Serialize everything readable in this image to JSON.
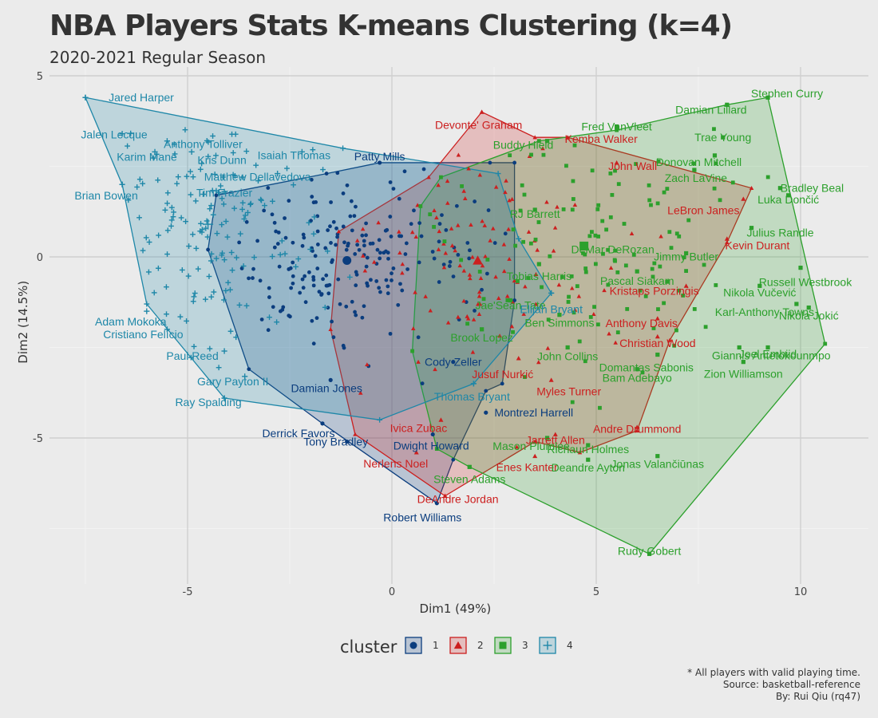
{
  "chart_data": {
    "type": "scatter",
    "title": "NBA Players Stats K-means Clustering (k=4)",
    "subtitle": "2020-2021 Regular Season",
    "xlabel": "Dim1 (49%)",
    "ylabel": "Dim2 (14.5%)",
    "xlim": [
      -8.5,
      11.5
    ],
    "ylim": [
      -9,
      5.2
    ],
    "x_ticks": [
      -5,
      0,
      5,
      10
    ],
    "y_ticks": [
      -5,
      0,
      5
    ],
    "grid": true,
    "legend": {
      "title": "cluster",
      "position": "bottom",
      "items": [
        "1",
        "2",
        "3",
        "4"
      ]
    },
    "caption": [
      "* All players with valid playing time.",
      "Source: basketball-reference",
      "By: Rui Qiu (rq47)"
    ],
    "clusters": [
      {
        "name": "1",
        "color": "#0b3d7e",
        "marker": "circle",
        "centroid": [
          -1.1,
          -0.1
        ],
        "hull": [
          [
            -4.3,
            1.7
          ],
          [
            -1.6,
            2.3
          ],
          [
            -0.3,
            2.6
          ],
          [
            2.4,
            2.6
          ],
          [
            3.0,
            2.6
          ],
          [
            3.0,
            -1.2
          ],
          [
            2.7,
            -3.5
          ],
          [
            2.3,
            -3.7
          ],
          [
            1.5,
            -5.6
          ],
          [
            1.1,
            -6.8
          ],
          [
            -1.7,
            -4.6
          ],
          [
            -3.5,
            -3.1
          ],
          [
            -4.5,
            0.2
          ]
        ],
        "labels": [
          {
            "name": "Patty Mills",
            "x": -0.3,
            "y": 2.6
          },
          {
            "name": "Cody Zeller",
            "x": 1.5,
            "y": -2.9
          },
          {
            "name": "Damian Jones",
            "x": -1.5,
            "y": -3.4
          },
          {
            "name": "Montrezl Harrell",
            "x": 2.3,
            "y": -4.3
          },
          {
            "name": "Derrick Favors",
            "x": -1.7,
            "y": -4.6
          },
          {
            "name": "Tony Bradley",
            "x": -1.1,
            "y": -5.1
          },
          {
            "name": "Dwight Howard",
            "x": 1.0,
            "y": -4.9
          },
          {
            "name": "Robert Williams",
            "x": 1.1,
            "y": -6.8
          }
        ]
      },
      {
        "name": "2",
        "color": "#cc1f1f",
        "marker": "triangle",
        "centroid": [
          2.1,
          -0.1
        ],
        "hull": [
          [
            0.9,
            2.2
          ],
          [
            2.2,
            4.0
          ],
          [
            3.5,
            3.3
          ],
          [
            4.3,
            3.3
          ],
          [
            8.8,
            1.9
          ],
          [
            8.2,
            0.4
          ],
          [
            6.8,
            -2.3
          ],
          [
            6.0,
            -4.8
          ],
          [
            4.6,
            -5.4
          ],
          [
            3.5,
            -5.1
          ],
          [
            1.3,
            -6.6
          ],
          [
            -0.9,
            -4.9
          ],
          [
            -1.5,
            -2.0
          ],
          [
            -1.3,
            0.7
          ]
        ],
        "labels": [
          {
            "name": "Devonte' Graham",
            "x": 2.2,
            "y": 4.0
          },
          {
            "name": "Kemba Walker",
            "x": 4.3,
            "y": 3.3
          },
          {
            "name": "John Wall",
            "x": 5.5,
            "y": 2.6
          },
          {
            "name": "LeBron James",
            "x": 8.6,
            "y": 1.6
          },
          {
            "name": "Kevin Durant",
            "x": 8.2,
            "y": 0.5
          },
          {
            "name": "Kristaps Porziņģis",
            "x": 7.2,
            "y": -0.8
          },
          {
            "name": "Anthony Davis",
            "x": 6.5,
            "y": -1.7
          },
          {
            "name": "Christian Wood",
            "x": 6.5,
            "y": -2.2
          },
          {
            "name": "Jusuf Nurkić",
            "x": 3.1,
            "y": -2.8
          },
          {
            "name": "Myles Turner",
            "x": 3.9,
            "y": -3.4
          },
          {
            "name": "Andre Drummond",
            "x": 6.0,
            "y": -4.7
          },
          {
            "name": "Ivica Zubac",
            "x": 1.2,
            "y": -4.5
          },
          {
            "name": "Jarrett Allen",
            "x": 4.0,
            "y": -4.9
          },
          {
            "name": "Nerlens Noel",
            "x": 0.6,
            "y": -5.4
          },
          {
            "name": "Enes Kanter",
            "x": 3.5,
            "y": -5.5
          },
          {
            "name": "DeAndre Jordan",
            "x": 1.3,
            "y": -6.6
          }
        ]
      },
      {
        "name": "3",
        "color": "#2ca02c",
        "marker": "square",
        "centroid": [
          4.7,
          0.3
        ],
        "hull": [
          [
            1.2,
            2.2
          ],
          [
            3.6,
            3.2
          ],
          [
            5.5,
            3.5
          ],
          [
            8.2,
            4.2
          ],
          [
            9.2,
            4.4
          ],
          [
            10.6,
            -2.4
          ],
          [
            6.3,
            -8.2
          ],
          [
            1.9,
            -5.8
          ],
          [
            1.1,
            -5.3
          ],
          [
            0.5,
            -2.6
          ],
          [
            0.7,
            1.4
          ]
        ],
        "labels": [
          {
            "name": "Stephen Curry",
            "x": 9.2,
            "y": 4.4
          },
          {
            "name": "Damian Lillard",
            "x": 8.2,
            "y": 4.2
          },
          {
            "name": "Fred VanVleet",
            "x": 5.5,
            "y": 3.6
          },
          {
            "name": "Trae Young",
            "x": 8.1,
            "y": 3.3
          },
          {
            "name": "Buddy Hield",
            "x": 3.8,
            "y": 3.2
          },
          {
            "name": "Donovan Mitchell",
            "x": 7.9,
            "y": 2.8
          },
          {
            "name": "Zach LaVine",
            "x": 7.4,
            "y": 2.4
          },
          {
            "name": "Bradley Beal",
            "x": 9.5,
            "y": 1.9
          },
          {
            "name": "Luka Dončić",
            "x": 9.7,
            "y": 1.7
          },
          {
            "name": "Julius Randle",
            "x": 8.8,
            "y": 0.8
          },
          {
            "name": "RJ Barrett",
            "x": 3.5,
            "y": 1.3
          },
          {
            "name": "DeMar DeRozan",
            "x": 4.7,
            "y": 0.3
          },
          {
            "name": "Jimmy Butler",
            "x": 7.2,
            "y": 0.1
          },
          {
            "name": "Tobias Harris",
            "x": 3.6,
            "y": -0.2
          },
          {
            "name": "Pascal Siakam",
            "x": 6.0,
            "y": -0.4
          },
          {
            "name": "Russell Westbrook",
            "x": 10.0,
            "y": -0.3
          },
          {
            "name": "Nikola Vučević",
            "x": 9.0,
            "y": -0.8
          },
          {
            "name": "Karl-Anthony Towns",
            "x": 9.9,
            "y": -1.3
          },
          {
            "name": "Nikola Jokić",
            "x": 10.2,
            "y": -1.4
          },
          {
            "name": "Jae'Sean Tate",
            "x": 2.9,
            "y": -1.2
          },
          {
            "name": "Ben Simmons",
            "x": 4.1,
            "y": -1.6
          },
          {
            "name": "Brook Lopez",
            "x": 2.2,
            "y": -2.0
          },
          {
            "name": "Joel Embiid",
            "x": 9.2,
            "y": -2.5
          },
          {
            "name": "John Collins",
            "x": 4.3,
            "y": -2.5
          },
          {
            "name": "Domantas Sabonis",
            "x": 6.5,
            "y": -2.7
          },
          {
            "name": "Giannis Antetokounmpo",
            "x": 8.5,
            "y": -2.5
          },
          {
            "name": "Zion Williamson",
            "x": 8.6,
            "y": -2.9
          },
          {
            "name": "Bam Adebayo",
            "x": 6.0,
            "y": -3.1
          },
          {
            "name": "Mason Plumlee",
            "x": 3.8,
            "y": -5.0
          },
          {
            "name": "Richaun Holmes",
            "x": 4.8,
            "y": -5.2
          },
          {
            "name": "Jonas Valančiūnas",
            "x": 6.5,
            "y": -5.5
          },
          {
            "name": "Deandre Ayton",
            "x": 4.8,
            "y": -5.6
          },
          {
            "name": "Steven Adams",
            "x": 1.9,
            "y": -5.8
          },
          {
            "name": "Rudy Gobert",
            "x": 6.3,
            "y": -8.2
          }
        ]
      },
      {
        "name": "4",
        "color": "#1e87a8",
        "marker": "plus",
        "centroid": [
          -4.5,
          0.9
        ],
        "hull": [
          [
            -7.5,
            4.4
          ],
          [
            -1.2,
            3.0
          ],
          [
            2.6,
            2.3
          ],
          [
            3.1,
            0.5
          ],
          [
            3.9,
            -1.0
          ],
          [
            2.0,
            -3.5
          ],
          [
            -0.3,
            -4.5
          ],
          [
            -4.1,
            -3.9
          ],
          [
            -6.0,
            -1.3
          ],
          [
            -6.6,
            2.0
          ]
        ],
        "labels": [
          {
            "name": "Jared Harper",
            "x": -7.5,
            "y": 4.4
          },
          {
            "name": "Jalen Lecque",
            "x": -6.6,
            "y": 3.4
          },
          {
            "name": "Anthony Tolliver",
            "x": -5.5,
            "y": 3.2
          },
          {
            "name": "Karim Mané",
            "x": -5.8,
            "y": 2.9
          },
          {
            "name": "Kris Dunn",
            "x": -4.9,
            "y": 2.9
          },
          {
            "name": "Isaiah Thomas",
            "x": -2.2,
            "y": 2.9
          },
          {
            "name": "Matthew Dellavedova",
            "x": -2.8,
            "y": 2.3
          },
          {
            "name": "Brian Bowen",
            "x": -6.6,
            "y": 2.0
          },
          {
            "name": "Tim Frazier",
            "x": -4.1,
            "y": 1.8
          },
          {
            "name": "Adam Mokoka",
            "x": -6.0,
            "y": -1.5
          },
          {
            "name": "Cristiano Felício",
            "x": -5.5,
            "y": -2.0
          },
          {
            "name": "Paul Reed",
            "x": -4.1,
            "y": -2.6
          },
          {
            "name": "Gary Payton II",
            "x": -3.6,
            "y": -3.3
          },
          {
            "name": "Ray Spalding",
            "x": -4.1,
            "y": -3.9
          },
          {
            "name": "Elijah Bryant",
            "x": 3.9,
            "y": -1.0
          },
          {
            "name": "Thomas Bryant",
            "x": 2.0,
            "y": -3.5
          }
        ]
      }
    ]
  }
}
